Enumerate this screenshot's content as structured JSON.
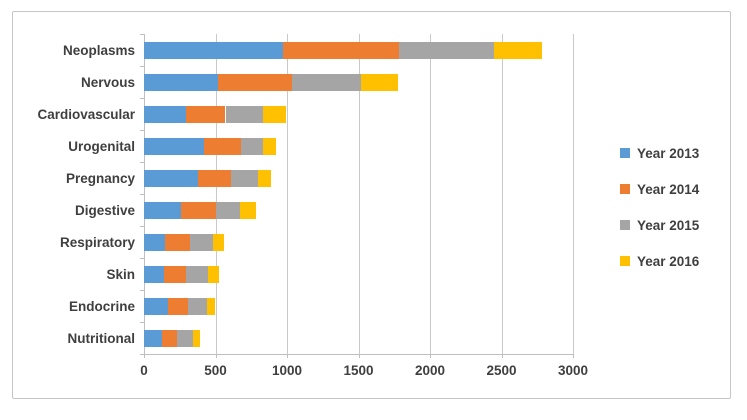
{
  "chart_data": {
    "type": "bar",
    "orientation": "horizontal",
    "stacked": true,
    "title": "",
    "xlabel": "",
    "ylabel": "",
    "grid": true,
    "categories": [
      "Neoplasms",
      "Nervous",
      "Cardiovascular",
      "Urogenital",
      "Pregnancy",
      "Digestive",
      "Respiratory",
      "Skin",
      "Endocrine",
      "Nutritional"
    ],
    "series": [
      {
        "name": "Year 2013",
        "color": "#5B9BD5",
        "values": [
          970,
          520,
          295,
          420,
          380,
          260,
          150,
          140,
          165,
          125
        ]
      },
      {
        "name": "Year 2014",
        "color": "#ED7D31",
        "values": [
          810,
          515,
          275,
          260,
          225,
          245,
          175,
          155,
          145,
          105
        ]
      },
      {
        "name": "Year 2015",
        "color": "#A5A5A5",
        "values": [
          665,
          480,
          265,
          155,
          195,
          165,
          155,
          150,
          130,
          110
        ]
      },
      {
        "name": "Year 2016",
        "color": "#FFC000",
        "values": [
          335,
          260,
          155,
          85,
          90,
          110,
          80,
          80,
          60,
          55
        ]
      }
    ],
    "x_axis": {
      "min": 0,
      "max": 3000,
      "tick_step": 500,
      "tick_labels": [
        "0",
        "500",
        "1000",
        "1500",
        "2000",
        "2500",
        "3000"
      ]
    },
    "legend": {
      "position": "right",
      "entries": [
        "Year 2013",
        "Year 2014",
        "Year 2015",
        "Year 2016"
      ]
    }
  },
  "styles": {
    "gridline_color": "#c9c9c9",
    "axis_color": "#bfbfbf",
    "text_color": "#3f3f3f",
    "frame_border_color": "#c6c6c6",
    "background": "#ffffff"
  }
}
